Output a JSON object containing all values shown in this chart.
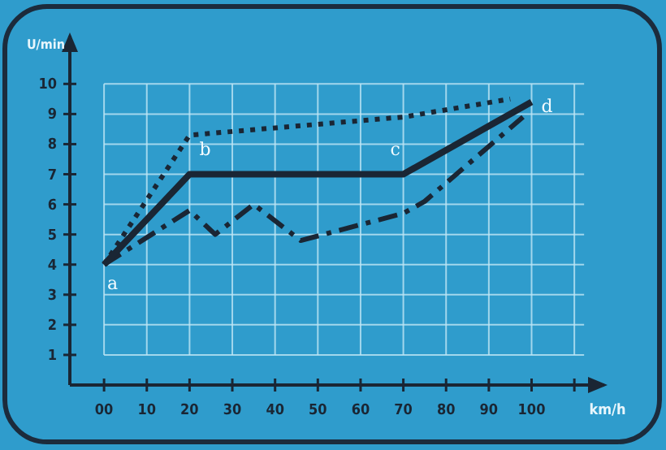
{
  "chart_data": {
    "type": "line",
    "xlabel": "km/h",
    "ylabel": "U/min",
    "xlim": [
      -8,
      117
    ],
    "xticks": [
      {
        "value": 0,
        "label": "00"
      },
      10,
      20,
      30,
      40,
      50,
      60,
      70,
      80,
      90,
      100,
      {
        "value": 110,
        "label": null
      }
    ],
    "ylim": [
      0,
      11.6
    ],
    "yticks": [
      1,
      2,
      3,
      4,
      5,
      6,
      7,
      8,
      9,
      10
    ],
    "grid": true,
    "marker": "none",
    "series": [
      {
        "color": "#1a2634",
        "line_style": "dotted",
        "x": [
          0,
          20,
          70,
          95
        ],
        "values": [
          4,
          8.3,
          8.9,
          9.5
        ]
      },
      {
        "color": "#1a2634",
        "line_style": "dashdot",
        "x": [
          0,
          20,
          26,
          35,
          46,
          70,
          75,
          98
        ],
        "values": [
          4,
          5.8,
          5.0,
          6.0,
          4.8,
          5.7,
          6.1,
          8.9
        ]
      },
      {
        "color": "#1a2634",
        "line_style": "solid",
        "x": [
          0,
          20,
          70,
          100
        ],
        "values": [
          4,
          7,
          7,
          9.4
        ]
      }
    ],
    "annotations": [
      {
        "text": "a",
        "x": 0,
        "y": 4
      },
      {
        "text": "b",
        "x": 20,
        "y": 7
      },
      {
        "text": "c",
        "x": 70,
        "y": 7
      },
      {
        "text": "d",
        "x": 100,
        "y": 9.4
      }
    ]
  }
}
